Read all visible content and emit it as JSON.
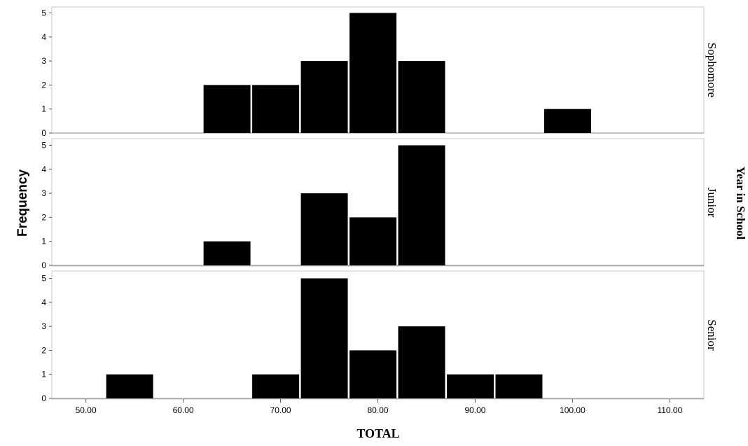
{
  "chart_data": {
    "type": "bar",
    "subtype": "faceted-histogram",
    "xlabel": "TOTAL",
    "ylabel": "Frequency",
    "facet_title": "Year in School",
    "xlim": [
      46.5,
      113.5
    ],
    "ylim": [
      0,
      5.2
    ],
    "x_ticks": [
      "50.00",
      "60.00",
      "70.00",
      "80.00",
      "90.00",
      "100.00",
      "110.00"
    ],
    "x_tick_values": [
      50,
      60,
      70,
      80,
      90,
      100,
      110
    ],
    "y_ticks": [
      "0",
      "1",
      "2",
      "3",
      "4",
      "5"
    ],
    "y_tick_values": [
      0,
      1,
      2,
      3,
      4,
      5
    ],
    "bin_width": 5,
    "bin_starts": [
      52,
      57,
      62,
      67,
      72,
      77,
      82,
      87,
      92,
      97
    ],
    "bar_color": "#000000",
    "panel_border_color": "#c8c8c8",
    "grid": false,
    "series": [
      {
        "name": "Sophomore",
        "values": [
          0,
          0,
          2,
          2,
          3,
          5,
          3,
          0,
          0,
          1
        ]
      },
      {
        "name": "Junior",
        "values": [
          0,
          0,
          1,
          0,
          3,
          2,
          5,
          0,
          0,
          0
        ]
      },
      {
        "name": "Senior",
        "values": [
          1,
          0,
          0,
          1,
          5,
          2,
          3,
          1,
          1,
          0
        ]
      }
    ]
  }
}
